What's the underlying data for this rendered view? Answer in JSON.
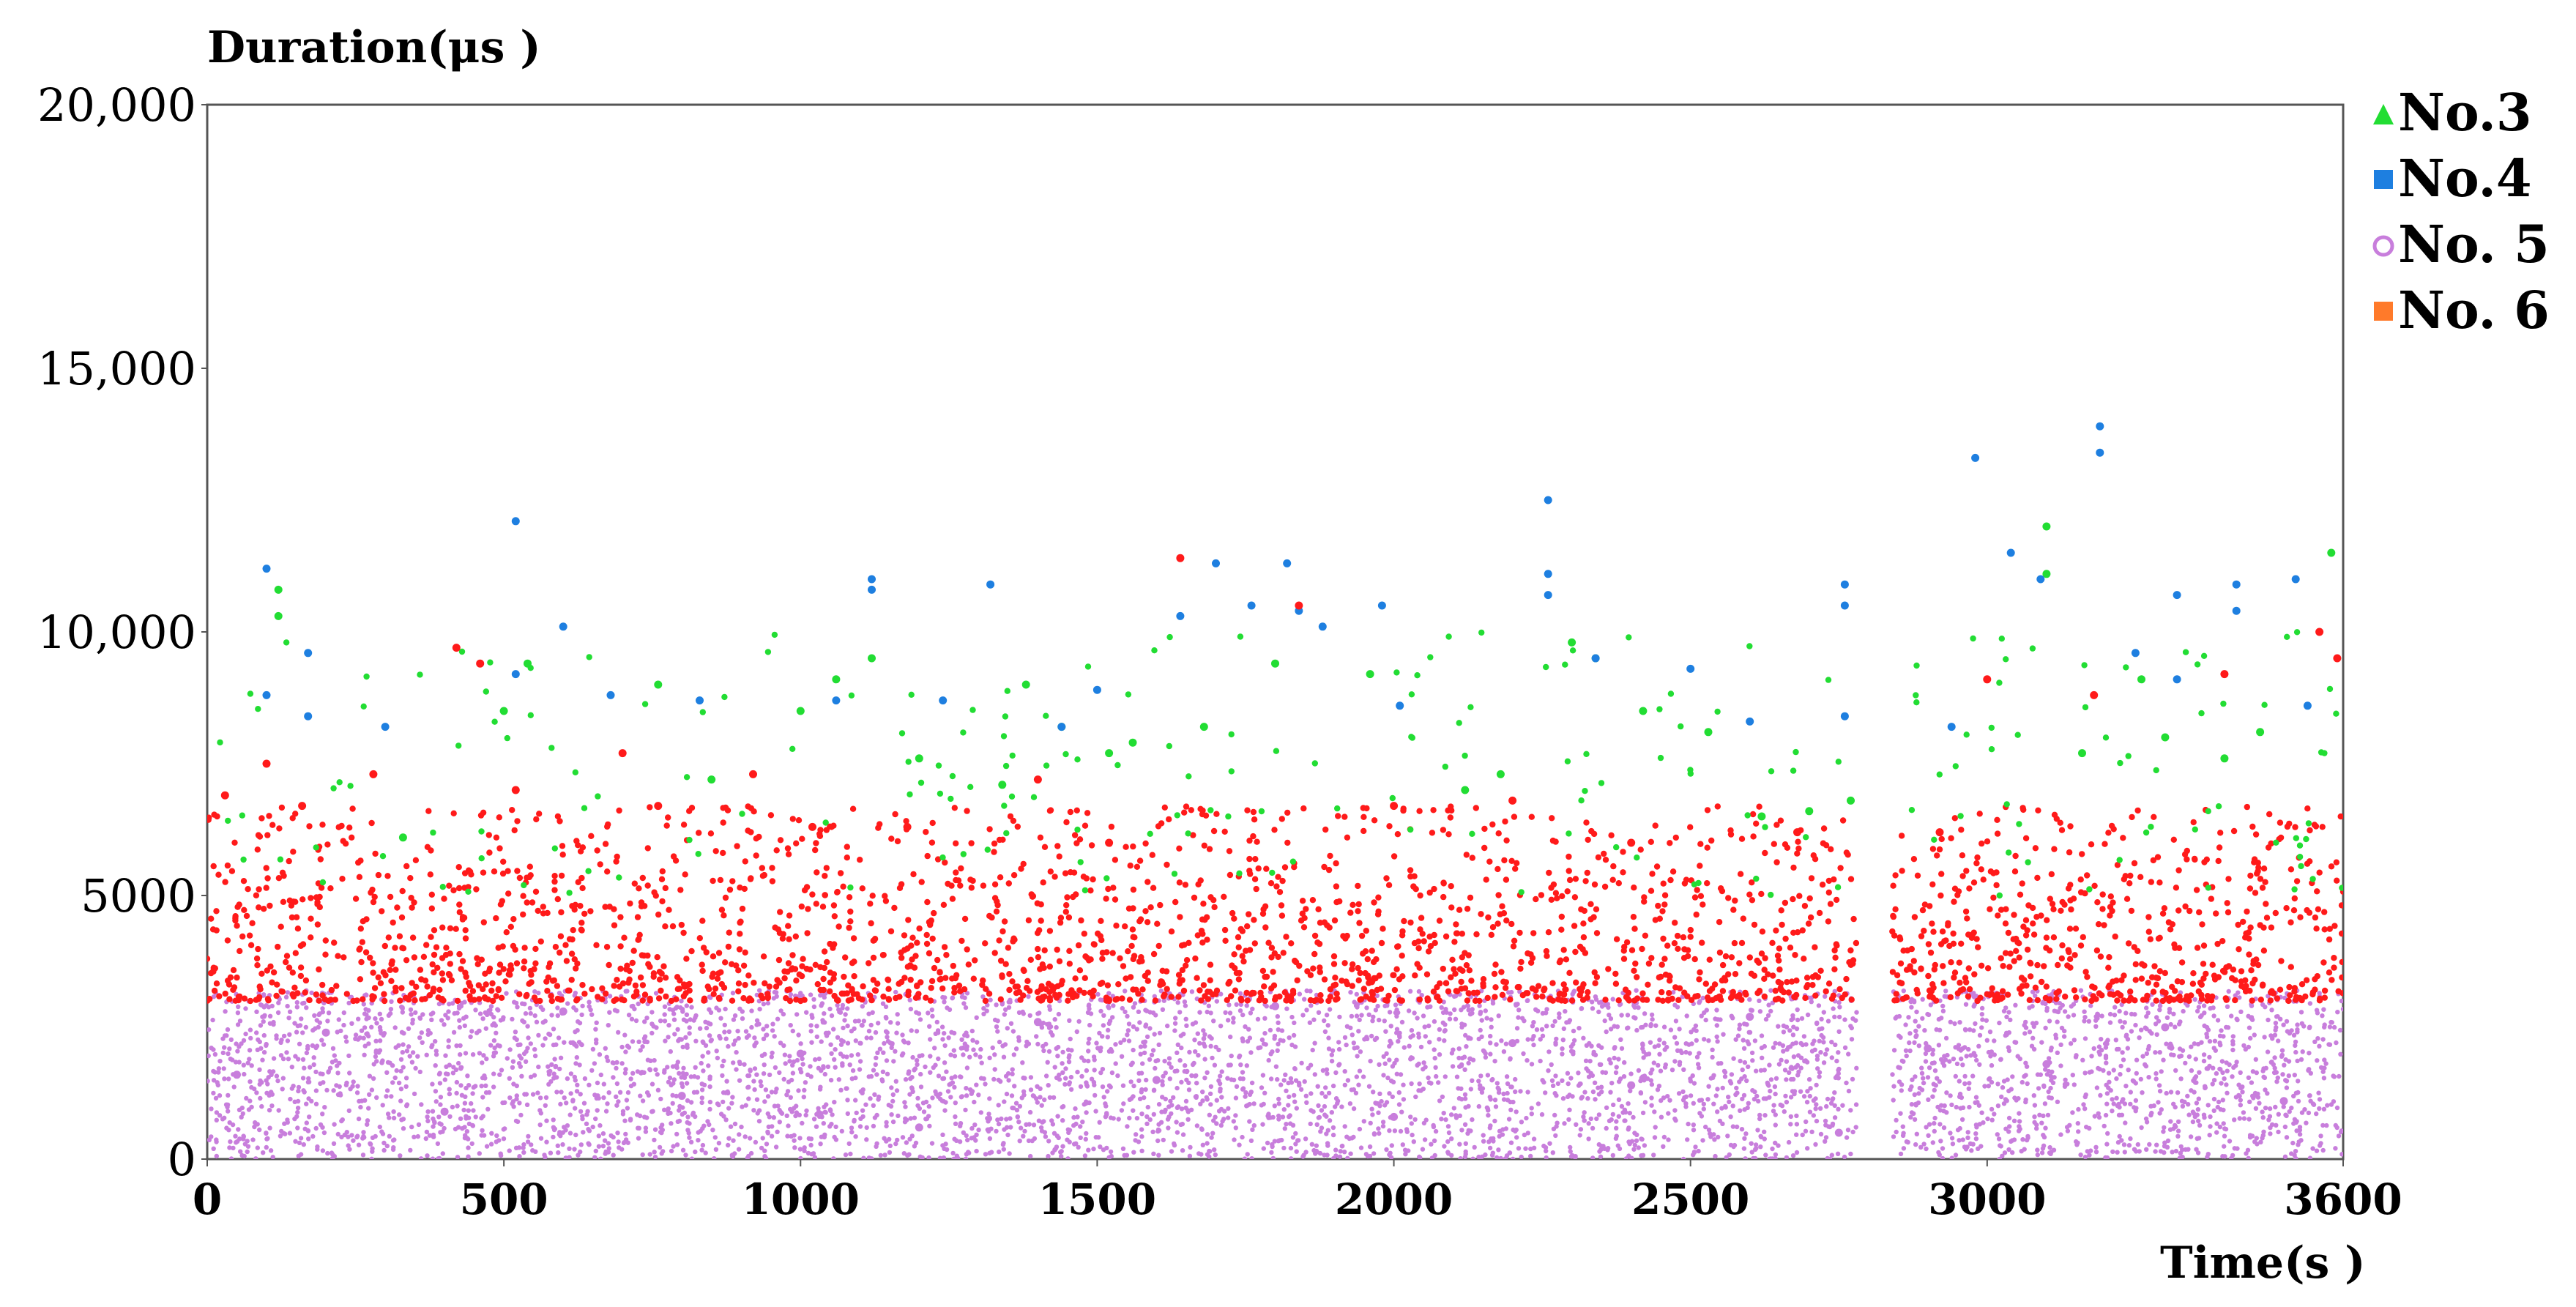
{
  "chart_data": {
    "type": "scatter",
    "ylabel": "Duration(μs )",
    "xlabel": "Time(s )",
    "xlim": [
      0,
      3600
    ],
    "ylim": [
      0,
      20000
    ],
    "x_ticks": [
      0,
      500,
      1000,
      1500,
      2000,
      2500,
      3000,
      3600
    ],
    "x_tick_labels": [
      "0",
      "500",
      "1000",
      "1500",
      "2000",
      "2500",
      "3000",
      "3600"
    ],
    "y_ticks": [
      0,
      5000,
      10000,
      15000,
      20000
    ],
    "y_tick_labels": [
      "0",
      "5000",
      "10,000",
      "15,000",
      "20,000"
    ],
    "grid": false,
    "legend_position": "right",
    "gap_x_range": [
      2780,
      2840
    ],
    "series": [
      {
        "name": "No.3",
        "color": "#22dd33",
        "marker": "triangle",
        "typical_range": [
          5000,
          10000
        ],
        "points": [
          [
            120,
            10300
          ],
          [
            120,
            10800
          ],
          [
            330,
            6100
          ],
          [
            500,
            8500
          ],
          [
            540,
            9400
          ],
          [
            760,
            9000
          ],
          [
            850,
            7200
          ],
          [
            1000,
            8500
          ],
          [
            1060,
            9100
          ],
          [
            1120,
            9500
          ],
          [
            1200,
            7600
          ],
          [
            1340,
            7100
          ],
          [
            1380,
            9000
          ],
          [
            1440,
            8200
          ],
          [
            1520,
            7700
          ],
          [
            1560,
            7900
          ],
          [
            1680,
            8200
          ],
          [
            1800,
            9400
          ],
          [
            1960,
            9200
          ],
          [
            2120,
            7000
          ],
          [
            2180,
            7300
          ],
          [
            2300,
            9800
          ],
          [
            2340,
            9500
          ],
          [
            2420,
            8500
          ],
          [
            2530,
            8100
          ],
          [
            2620,
            6500
          ],
          [
            2700,
            6600
          ],
          [
            2770,
            6800
          ],
          [
            3100,
            12000
          ],
          [
            3100,
            11100
          ],
          [
            3160,
            7700
          ],
          [
            3260,
            9100
          ],
          [
            3300,
            8000
          ],
          [
            3400,
            7600
          ],
          [
            3460,
            8100
          ],
          [
            3580,
            11500
          ],
          [
            3610,
            10000
          ],
          [
            3630,
            10700
          ]
        ]
      },
      {
        "name": "No.4",
        "color": "#1e7fe0",
        "marker": "square",
        "typical_range": [
          6000,
          14000
        ],
        "points": [
          [
            100,
            11200
          ],
          [
            100,
            8800
          ],
          [
            170,
            9600
          ],
          [
            170,
            8400
          ],
          [
            300,
            8200
          ],
          [
            520,
            12100
          ],
          [
            520,
            9200
          ],
          [
            600,
            10100
          ],
          [
            680,
            8800
          ],
          [
            830,
            8700
          ],
          [
            1060,
            8700
          ],
          [
            1120,
            11000
          ],
          [
            1120,
            10800
          ],
          [
            1240,
            8700
          ],
          [
            1320,
            10900
          ],
          [
            1440,
            8200
          ],
          [
            1500,
            8900
          ],
          [
            1640,
            10300
          ],
          [
            1700,
            11300
          ],
          [
            1760,
            10500
          ],
          [
            1820,
            11300
          ],
          [
            1840,
            10400
          ],
          [
            1880,
            10100
          ],
          [
            1980,
            10500
          ],
          [
            2010,
            8600
          ],
          [
            2260,
            12500
          ],
          [
            2260,
            11100
          ],
          [
            2260,
            10700
          ],
          [
            2340,
            9500
          ],
          [
            2500,
            9300
          ],
          [
            2600,
            8300
          ],
          [
            2760,
            10900
          ],
          [
            2760,
            10500
          ],
          [
            2760,
            8400
          ],
          [
            2940,
            8200
          ],
          [
            2980,
            13300
          ],
          [
            3040,
            11500
          ],
          [
            3090,
            11000
          ],
          [
            3190,
            13900
          ],
          [
            3190,
            13400
          ],
          [
            3250,
            9600
          ],
          [
            3320,
            10700
          ],
          [
            3320,
            9100
          ],
          [
            3420,
            10900
          ],
          [
            3420,
            10400
          ],
          [
            3520,
            11000
          ],
          [
            3540,
            8600
          ],
          [
            3620,
            8900
          ],
          [
            3640,
            11000
          ]
        ]
      },
      {
        "name": "No. 5",
        "color": "#c87edc",
        "marker": "circle",
        "typical_range": [
          0,
          3200
        ],
        "points": [
          [
            50,
            1600
          ],
          [
            200,
            2400
          ],
          [
            400,
            900
          ],
          [
            600,
            2800
          ],
          [
            800,
            1200
          ],
          [
            1000,
            2000
          ],
          [
            1200,
            600
          ],
          [
            1400,
            2600
          ],
          [
            1600,
            1500
          ],
          [
            1800,
            2900
          ],
          [
            2000,
            800
          ],
          [
            2200,
            2200
          ],
          [
            2400,
            1400
          ],
          [
            2600,
            2700
          ],
          [
            2750,
            500
          ],
          [
            2900,
            2100
          ],
          [
            3100,
            1800
          ],
          [
            3300,
            2500
          ],
          [
            3500,
            1100
          ],
          [
            3620,
            2300
          ]
        ]
      },
      {
        "name": "No. 6",
        "color": "#ff1a1a",
        "marker": "square",
        "legend_color": "#ff7a2a",
        "typical_range": [
          3000,
          5500
        ],
        "points": [
          [
            30,
            6900
          ],
          [
            100,
            7500
          ],
          [
            160,
            6700
          ],
          [
            280,
            7300
          ],
          [
            420,
            9700
          ],
          [
            460,
            9400
          ],
          [
            520,
            7000
          ],
          [
            700,
            7700
          ],
          [
            760,
            6700
          ],
          [
            920,
            7300
          ],
          [
            1020,
            6300
          ],
          [
            1180,
            6300
          ],
          [
            1400,
            7200
          ],
          [
            1520,
            6000
          ],
          [
            1640,
            11400
          ],
          [
            1840,
            10500
          ],
          [
            2000,
            6700
          ],
          [
            2200,
            6800
          ],
          [
            2400,
            6000
          ],
          [
            2680,
            6200
          ],
          [
            2920,
            6200
          ],
          [
            3000,
            9100
          ],
          [
            3180,
            8800
          ],
          [
            3400,
            9200
          ],
          [
            3560,
            10000
          ],
          [
            3590,
            9500
          ],
          [
            3620,
            6600
          ]
        ]
      }
    ]
  }
}
